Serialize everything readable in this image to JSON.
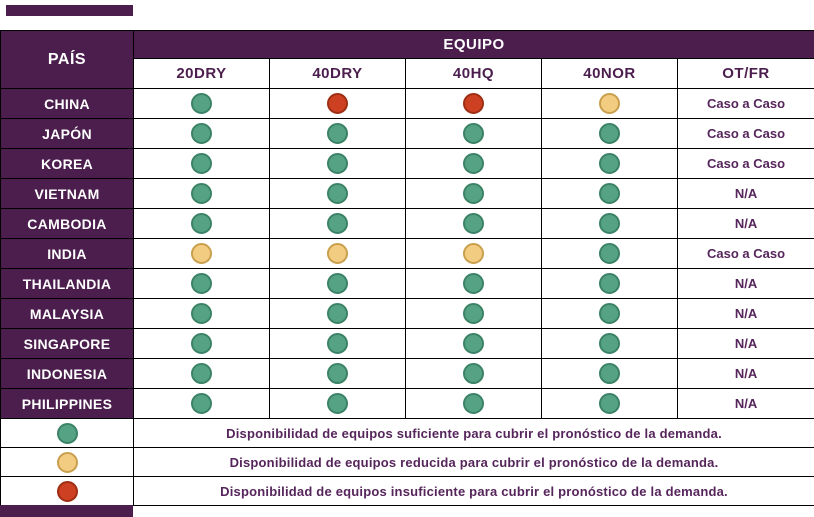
{
  "chart_data": {
    "type": "table",
    "header": {
      "pais": "PAÍS",
      "equipo": "EQUIPO",
      "columns": [
        "20DRY",
        "40DRY",
        "40HQ",
        "40NOR",
        "OT/FR"
      ]
    },
    "rows": [
      {
        "country": "CHINA",
        "equip": [
          "green",
          "red",
          "red",
          "yellow"
        ],
        "otfr": "Caso a Caso"
      },
      {
        "country": "JAPÓN",
        "equip": [
          "green",
          "green",
          "green",
          "green"
        ],
        "otfr": "Caso a Caso"
      },
      {
        "country": "KOREA",
        "equip": [
          "green",
          "green",
          "green",
          "green"
        ],
        "otfr": "Caso a Caso"
      },
      {
        "country": "VIETNAM",
        "equip": [
          "green",
          "green",
          "green",
          "green"
        ],
        "otfr": "N/A"
      },
      {
        "country": "CAMBODIA",
        "equip": [
          "green",
          "green",
          "green",
          "green"
        ],
        "otfr": "N/A"
      },
      {
        "country": "INDIA",
        "equip": [
          "yellow",
          "yellow",
          "yellow",
          "green"
        ],
        "otfr": "Caso a Caso"
      },
      {
        "country": "THAILANDIA",
        "equip": [
          "green",
          "green",
          "green",
          "green"
        ],
        "otfr": "N/A"
      },
      {
        "country": "MALAYSIA",
        "equip": [
          "green",
          "green",
          "green",
          "green"
        ],
        "otfr": "N/A"
      },
      {
        "country": "SINGAPORE",
        "equip": [
          "green",
          "green",
          "green",
          "green"
        ],
        "otfr": "N/A"
      },
      {
        "country": "INDONESIA",
        "equip": [
          "green",
          "green",
          "green",
          "green"
        ],
        "otfr": "N/A"
      },
      {
        "country": "PHILIPPINES",
        "equip": [
          "green",
          "green",
          "green",
          "green"
        ],
        "otfr": "N/A"
      }
    ],
    "legend": [
      {
        "status": "green",
        "text": "Disponibilidad de equipos suficiente para cubrir el pronóstico de la demanda."
      },
      {
        "status": "yellow",
        "text": "Disponibilidad de equipos reducida para cubrir el pronóstico de la demanda."
      },
      {
        "status": "red",
        "text": "Disponibilidad de equipos insuficiente para cubrir el pronóstico de la demanda."
      }
    ]
  },
  "colors": {
    "header_purple": "#4B1E4E",
    "text_purple": "#56255B",
    "status_green": "#55A384",
    "status_green_border": "#3B8266",
    "status_yellow": "#F2CC80",
    "status_yellow_border": "#C99F4E",
    "status_red": "#CD4022",
    "status_red_border": "#9E2F14",
    "grid_line": "#000000"
  }
}
